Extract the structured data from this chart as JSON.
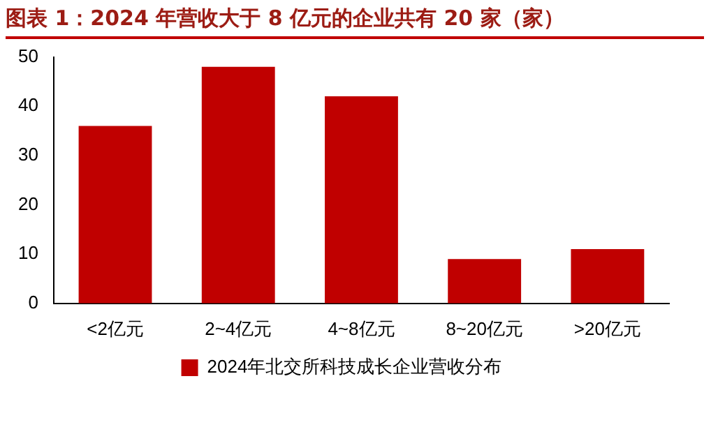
{
  "chart_data": {
    "type": "bar",
    "title": "图表 1：2024 年营收大于 8 亿元的企业共有 20 家（家）",
    "categories": [
      "<2亿元",
      "2~4亿元",
      "4~8亿元",
      "8~20亿元",
      ">20亿元"
    ],
    "series": [
      {
        "name": "2024年北交所科技成长企业营收分布",
        "color": "#c00000",
        "values": [
          36,
          48,
          42,
          9,
          11
        ]
      }
    ],
    "ylim": [
      0,
      50
    ],
    "yticks": [
      0,
      10,
      20,
      30,
      40,
      50
    ],
    "grid": false,
    "legend": "bottom"
  }
}
